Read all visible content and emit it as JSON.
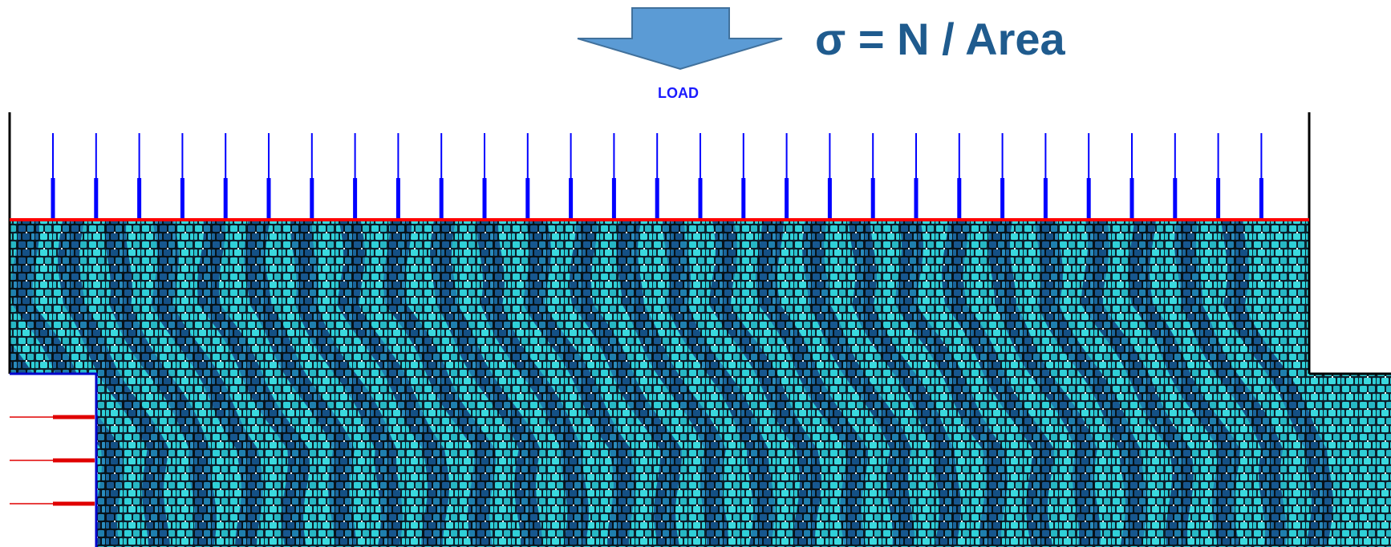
{
  "formula": "σ = N / Area",
  "load_label": "LOAD",
  "load_arrow_count": 29,
  "side_arrow_count": 3,
  "stripe_count": 28,
  "colors": {
    "formula": "#1f5b8e",
    "load_label": "#1a1aff",
    "load_arrow_fill": "#5b9bd5",
    "load_arrow_stroke": "#41719c",
    "platen_line": "#ff0000",
    "load_lines": "#0000ff",
    "side_arrows": "#e00000",
    "boundary": "#000000",
    "boundary_blue": "#0000cc",
    "particle_light": "#2fd0d8",
    "particle_dark": "#17578f",
    "void": "#ffffff"
  }
}
